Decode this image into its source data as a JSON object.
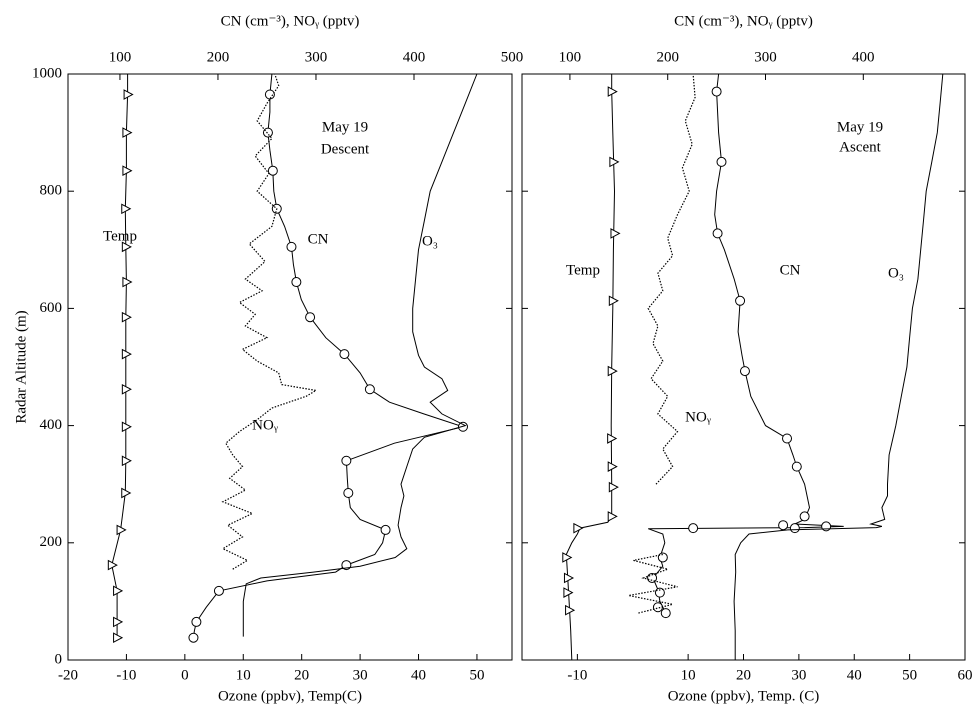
{
  "chart_data": [
    {
      "type": "line",
      "xlabel": "Ozone (ppbv), Temp(C)",
      "x2label": "CN (cm⁻³), NOᵧ (pptv)",
      "ylabel": "Radar Altitude (m)",
      "xlim": [
        -20,
        56
      ],
      "xticks": [
        -20,
        -10,
        0,
        10,
        20,
        30,
        40,
        50
      ],
      "x2lim": [
        47,
        500
      ],
      "x2ticks": [
        100,
        200,
        300,
        400,
        500
      ],
      "ylim": [
        0,
        1000
      ],
      "yticks": [
        0,
        200,
        400,
        600,
        800,
        1000
      ],
      "ytick_labels": true,
      "annotations": [
        "May 19",
        "Descent"
      ],
      "series": [
        {
          "name": "Temp",
          "color": "#000000",
          "axis": "x",
          "line_style": "solid",
          "marker": "triangle",
          "y": [
            38,
            65,
            118,
            162,
            222,
            285,
            340,
            398,
            462,
            522,
            585,
            645,
            705,
            770,
            835,
            900,
            965,
            1000
          ],
          "x": [
            -11.6,
            -11.6,
            -11.6,
            -12.5,
            -11,
            -10.2,
            -10.1,
            -10.1,
            -10.1,
            -10.1,
            -10.1,
            -10,
            -10.1,
            -10.2,
            -10,
            -10,
            -9.8,
            -9.8
          ],
          "markers": {
            "y": [
              38,
              65,
              118,
              162,
              222,
              285,
              340,
              398,
              462,
              522,
              585,
              645,
              705,
              770,
              835,
              900,
              965
            ],
            "x": [
              -11.6,
              -11.6,
              -11.6,
              -12.5,
              -11,
              -10.2,
              -10.1,
              -10.1,
              -10.1,
              -10.1,
              -10.1,
              -10,
              -10.1,
              -10.2,
              -10,
              -10,
              -9.8
            ]
          }
        },
        {
          "name": "CN",
          "color": "#000000",
          "axis": "x2",
          "line_style": "solid",
          "marker": "circle",
          "y": [
            38,
            50,
            65,
            90,
            118,
            135,
            150,
            162,
            180,
            200,
            222,
            240,
            260,
            285,
            310,
            340,
            370,
            398,
            420,
            440,
            462,
            490,
            522,
            550,
            585,
            615,
            645,
            675,
            705,
            740,
            770,
            800,
            835,
            870,
            900,
            935,
            965,
            1000
          ],
          "x": [
            175,
            176,
            178,
            188,
            201,
            250,
            320,
            331,
            360,
            368,
            371,
            345,
            335,
            333,
            332,
            331,
            380,
            450,
            410,
            375,
            355,
            345,
            329,
            310,
            294,
            285,
            280,
            277,
            275,
            268,
            260,
            257,
            256,
            253,
            251,
            253,
            253,
            255
          ],
          "markers": {
            "y": [
              38,
              65,
              118,
              162,
              222,
              285,
              340,
              398,
              462,
              522,
              585,
              645,
              705,
              770,
              835,
              900,
              965
            ],
            "x": [
              175,
              178,
              201,
              331,
              371,
              333,
              331,
              450,
              355,
              329,
              294,
              280,
              275,
              260,
              256,
              251,
              253
            ]
          }
        },
        {
          "name": "O₃",
          "color": "#000000",
          "axis": "x",
          "line_style": "solid",
          "marker": "none",
          "y": [
            40,
            100,
            130,
            140,
            150,
            160,
            175,
            190,
            210,
            230,
            260,
            280,
            300,
            330,
            360,
            380,
            400,
            420,
            440,
            460,
            480,
            500,
            520,
            540,
            560,
            600,
            650,
            700,
            750,
            800,
            850,
            900,
            950,
            1000
          ],
          "x": [
            10,
            10,
            10.5,
            13,
            22,
            30,
            36,
            38,
            37,
            36.5,
            37,
            37.5,
            37,
            38,
            39,
            41,
            48,
            44,
            42,
            45,
            44,
            41,
            40,
            39.5,
            39,
            39,
            39.5,
            40,
            41,
            42,
            44,
            46,
            48,
            50
          ]
        },
        {
          "name": "NOᵧ",
          "color": "#000000",
          "axis": "x2",
          "line_style": "dotted",
          "marker": "none",
          "y": [
            155,
            170,
            190,
            210,
            230,
            250,
            270,
            290,
            310,
            330,
            350,
            370,
            390,
            410,
            430,
            450,
            460,
            470,
            490,
            510,
            530,
            550,
            570,
            590,
            610,
            630,
            650,
            680,
            710,
            740,
            770,
            800,
            830,
            860,
            890,
            920,
            950,
            980,
            1000
          ],
          "x": [
            215,
            230,
            205,
            225,
            210,
            235,
            205,
            228,
            212,
            225,
            215,
            208,
            222,
            240,
            255,
            290,
            300,
            265,
            262,
            240,
            225,
            250,
            228,
            238,
            222,
            245,
            228,
            248,
            232,
            255,
            260,
            240,
            252,
            238,
            255,
            240,
            250,
            262,
            258
          ]
        }
      ]
    },
    {
      "type": "line",
      "xlabel": "Ozone (ppbv), Temp. (C)",
      "x2label": "CN (cm⁻³), NOᵧ (pptv)",
      "xlim": [
        -20,
        60
      ],
      "xticks": [
        -10,
        10,
        20,
        30,
        40,
        50,
        60
      ],
      "x2lim": [
        51,
        504
      ],
      "x2ticks": [
        100,
        200,
        300,
        400
      ],
      "ylim": [
        0,
        1000
      ],
      "yticks": [
        0,
        200,
        400,
        600,
        800,
        1000
      ],
      "ytick_labels": false,
      "annotations": [
        "May 19",
        "Ascent"
      ],
      "series": [
        {
          "name": "Temp",
          "color": "#000000",
          "axis": "x",
          "line_style": "solid",
          "marker": "triangle",
          "y": [
            0,
            50,
            100,
            150,
            180,
            200,
            215,
            225,
            235,
            245,
            300,
            400,
            500,
            600,
            700,
            800,
            900,
            970,
            1000
          ],
          "x": [
            -11,
            -11.2,
            -11.5,
            -11.8,
            -12,
            -11,
            -10,
            -9.5,
            -4.5,
            -3.8,
            -3.8,
            -3.9,
            -3.8,
            -3.6,
            -3.5,
            -3.3,
            -3.6,
            -3.8,
            -3.8
          ],
          "markers": {
            "y": [
              85,
              115,
              140,
              175,
              225,
              245,
              295,
              330,
              378,
              493,
              613,
              728,
              850,
              970
            ],
            "x": [
              -11.5,
              -11.8,
              -11.7,
              -12,
              -10,
              -3.8,
              -3.6,
              -3.8,
              -3.9,
              -3.8,
              -3.6,
              -3.3,
              -3.5,
              -3.8
            ]
          }
        },
        {
          "name": "CN",
          "color": "#000000",
          "axis": "x2",
          "line_style": "solid",
          "marker": "circle",
          "y": [
            80,
            100,
            120,
            140,
            160,
            175,
            200,
            215,
            224,
            226,
            228,
            232,
            240,
            260,
            300,
            330,
            350,
            378,
            400,
            450,
            493,
            520,
            560,
            613,
            650,
            700,
            728,
            760,
            800,
            850,
            900,
            970,
            1000
          ],
          "x": [
            198,
            192,
            190,
            185,
            195,
            192,
            197,
            195,
            180,
            340,
            380,
            330,
            340,
            345,
            340,
            332,
            328,
            322,
            300,
            285,
            279,
            276,
            272,
            274,
            268,
            258,
            251,
            248,
            250,
            255,
            252,
            250,
            252
          ],
          "markers": {
            "y": [
              80,
              90,
              115,
              140,
              175,
              225,
              225,
              228,
              230,
              245,
              330,
              378,
              493,
              613,
              728,
              850,
              970
            ],
            "x": [
              198,
              190,
              192,
              184,
              195,
              226,
              330,
              362,
              318,
              340,
              332,
              322,
              279,
              274,
              251,
              255,
              250
            ]
          }
        },
        {
          "name": "O₃",
          "color": "#000000",
          "axis": "x",
          "line_style": "solid",
          "marker": "none",
          "y": [
            0,
            50,
            100,
            150,
            180,
            200,
            215,
            222,
            226,
            228,
            232,
            240,
            260,
            280,
            300,
            350,
            400,
            450,
            500,
            550,
            600,
            650,
            700,
            750,
            800,
            850,
            900,
            950,
            1000
          ],
          "x": [
            18.5,
            18.5,
            18.3,
            18.6,
            18.5,
            19.5,
            21,
            28,
            44,
            45,
            43,
            45.5,
            45,
            46,
            46,
            46.3,
            47.5,
            48.5,
            49.5,
            50,
            50.5,
            51.5,
            52,
            52.5,
            53,
            54,
            55,
            55.5,
            56
          ]
        },
        {
          "name": "NOᵧ",
          "color": "#000000",
          "axis": "x2",
          "line_style": "dotted",
          "marker": "none",
          "y": [
            80,
            95,
            110,
            125,
            140,
            155,
            170,
            180,
            null,
            300,
            330,
            360,
            390,
            420,
            450,
            480,
            510,
            540,
            570,
            600,
            630,
            660,
            690,
            720,
            760,
            800,
            840,
            880,
            920,
            960,
            1000
          ],
          "x": [
            170,
            205,
            160,
            210,
            175,
            200,
            165,
            195,
            null,
            188,
            205,
            195,
            210,
            190,
            200,
            183,
            195,
            185,
            190,
            180,
            195,
            190,
            205,
            200,
            210,
            222,
            215,
            225,
            218,
            228,
            226
          ]
        }
      ]
    }
  ]
}
